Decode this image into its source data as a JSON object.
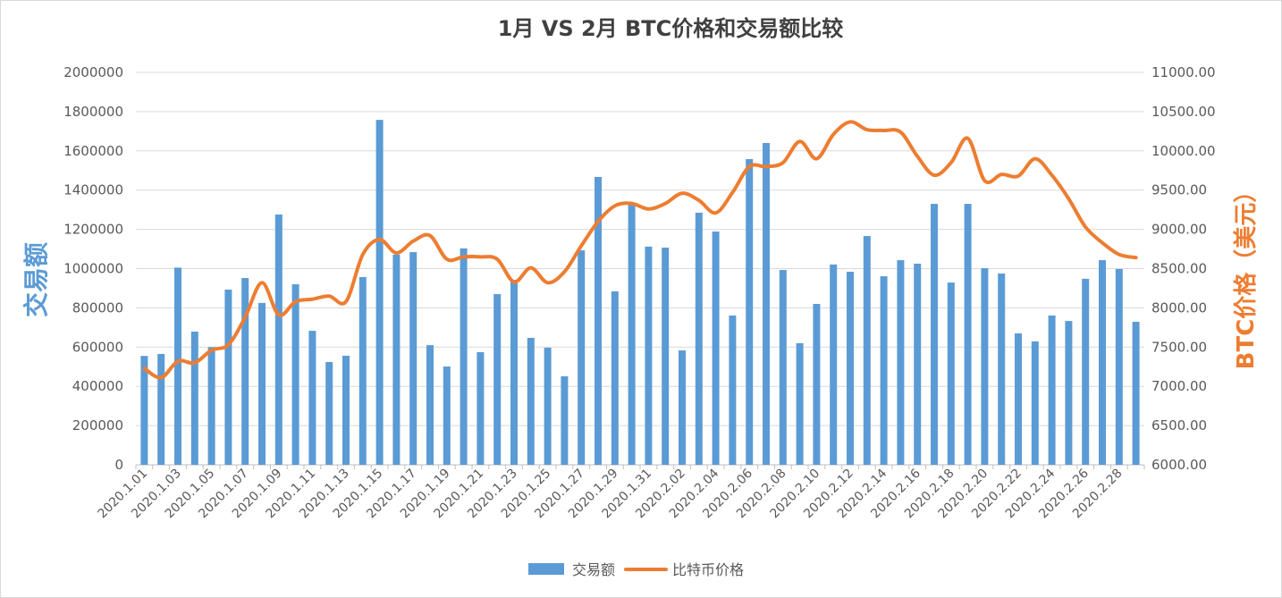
{
  "chart_data": {
    "type": "bar",
    "title": "1月 VS 2月 BTC价格和交易额比较",
    "xlabel": "",
    "ylabel": "交易额",
    "y2label": "BTC价格（美元）",
    "ylim": [
      0,
      2000000
    ],
    "y2lim": [
      6000,
      11000
    ],
    "grid": true,
    "legend_position": "bottom",
    "y_tick_labels": [
      "0",
      "200000",
      "400000",
      "600000",
      "800000",
      "1000000",
      "1200000",
      "1400000",
      "1600000",
      "1800000",
      "2000000"
    ],
    "y2_tick_labels": [
      "6000.00",
      "6500.00",
      "7000.00",
      "7500.00",
      "8000.00",
      "8500.00",
      "9000.00",
      "9500.00",
      "10000.00",
      "10500.00",
      "11000.00"
    ],
    "x_tick_labels": [
      "2020.1.01",
      "2020.1.03",
      "2020.1.05",
      "2020.1.07",
      "2020.1.09",
      "2020.1.11",
      "2020.1.13",
      "2020.1.15",
      "2020.1.17",
      "2020.1.19",
      "2020.1.21",
      "2020.1.23",
      "2020.1.25",
      "2020.1.27",
      "2020.1.29",
      "2020.1.31",
      "2020.2.02",
      "2020.2.04",
      "2020.2.06",
      "2020.2.08",
      "2020.2.10",
      "2020.2.12",
      "2020.2.14",
      "2020.2.16",
      "2020.2.18",
      "2020.2.20",
      "2020.2.22",
      "2020.2.24",
      "2020.2.26",
      "2020.2.28"
    ],
    "series": [
      {
        "name": "交易额",
        "type": "bar",
        "axis": "left",
        "color": "#5B9BD5",
        "values": [
          555000,
          565000,
          1005000,
          679000,
          600000,
          893000,
          952000,
          825000,
          1276000,
          920000,
          683000,
          524000,
          556000,
          957000,
          1758000,
          1071000,
          1084000,
          610000,
          501000,
          1103000,
          574000,
          870000,
          943000,
          647000,
          597000,
          451000,
          1093000,
          1467000,
          884000,
          1330000,
          1112000,
          1107000,
          583000,
          1285000,
          1189000,
          761000,
          1558000,
          1640000,
          993000,
          620000,
          820000,
          1021000,
          984000,
          1166000,
          961000,
          1043000,
          1025000,
          1330000,
          929000,
          1330000,
          1002000,
          975000,
          670000,
          629000,
          761000,
          733000,
          948000,
          1043000,
          998000,
          729000
        ]
      },
      {
        "name": "比特币价格",
        "type": "line",
        "axis": "right",
        "color": "#ED7D31",
        "values": [
          7230,
          7110,
          7320,
          7300,
          7460,
          7530,
          7880,
          8320,
          7910,
          8080,
          8110,
          8150,
          8080,
          8680,
          8870,
          8700,
          8850,
          8920,
          8620,
          8650,
          8650,
          8620,
          8330,
          8510,
          8320,
          8460,
          8790,
          9100,
          9300,
          9330,
          9260,
          9330,
          9460,
          9370,
          9210,
          9470,
          9800,
          9800,
          9850,
          10120,
          9900,
          10210,
          10370,
          10270,
          10260,
          10240,
          9930,
          9690,
          9850,
          10160,
          9620,
          9700,
          9680,
          9900,
          9690,
          9390,
          9030,
          8830,
          8680,
          8640
        ]
      }
    ]
  }
}
